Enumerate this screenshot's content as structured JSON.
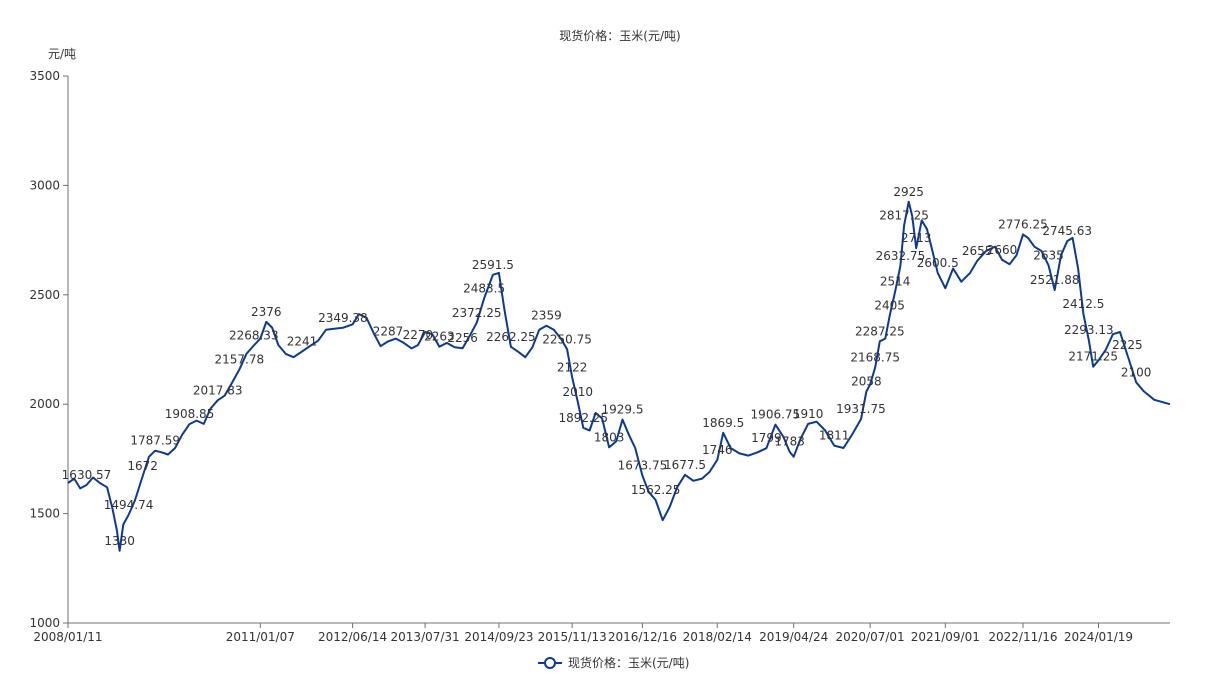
{
  "chart_data": {
    "type": "line",
    "title": "现货价格：玉米(元/吨)",
    "ylabel": "元/吨",
    "xlabel": "",
    "ylim": [
      1000,
      3500
    ],
    "yticks": [
      1000,
      1500,
      2000,
      2500,
      3000,
      3500
    ],
    "x_range": [
      "2008-01-11",
      "2025-02-28"
    ],
    "xticks": [
      "2008/01/11",
      "2011/01/07",
      "2012/06/14",
      "2013/07/31",
      "2014/09/23",
      "2015/11/13",
      "2016/12/16",
      "2018/02/14",
      "2019/04/24",
      "2020/07/01",
      "2021/09/01",
      "2022/11/16",
      "2024/01/19"
    ],
    "grid": false,
    "legend_position": "bottom",
    "series": [
      {
        "name": "现货价格：玉米(元/吨)",
        "color": "#0b3b91",
        "points": [
          [
            "2008-01-11",
            1640
          ],
          [
            "2008-02-15",
            1660
          ],
          [
            "2008-03-20",
            1615
          ],
          [
            "2008-04-25",
            1630.57
          ],
          [
            "2008-06-01",
            1665
          ],
          [
            "2008-07-10",
            1640
          ],
          [
            "2008-08-20",
            1620
          ],
          [
            "2008-09-20",
            1520
          ],
          [
            "2008-10-15",
            1420
          ],
          [
            "2008-10-30",
            1330
          ],
          [
            "2008-11-20",
            1450
          ],
          [
            "2008-12-20",
            1494.74
          ],
          [
            "2009-01-25",
            1560
          ],
          [
            "2009-03-10",
            1672
          ],
          [
            "2009-04-15",
            1760
          ],
          [
            "2009-05-20",
            1787.59
          ],
          [
            "2009-06-25",
            1780
          ],
          [
            "2009-08-01",
            1770
          ],
          [
            "2009-09-10",
            1800
          ],
          [
            "2009-10-20",
            1860
          ],
          [
            "2009-12-01",
            1908.85
          ],
          [
            "2010-01-10",
            1925
          ],
          [
            "2010-02-20",
            1910
          ],
          [
            "2010-03-30",
            1980
          ],
          [
            "2010-05-10",
            2017.83
          ],
          [
            "2010-06-20",
            2040
          ],
          [
            "2010-08-01",
            2100
          ],
          [
            "2010-09-10",
            2157.78
          ],
          [
            "2010-10-20",
            2230
          ],
          [
            "2010-12-01",
            2268.33
          ],
          [
            "2011-01-07",
            2300
          ],
          [
            "2011-02-10",
            2376
          ],
          [
            "2011-03-15",
            2350
          ],
          [
            "2011-04-20",
            2270
          ],
          [
            "2011-06-01",
            2230
          ],
          [
            "2011-07-15",
            2215
          ],
          [
            "2011-09-01",
            2241
          ],
          [
            "2011-10-15",
            2265
          ],
          [
            "2011-12-01",
            2290
          ],
          [
            "2012-01-15",
            2340
          ],
          [
            "2012-03-01",
            2345
          ],
          [
            "2012-04-20",
            2349.38
          ],
          [
            "2012-06-14",
            2365
          ],
          [
            "2012-07-20",
            2412
          ],
          [
            "2012-09-01",
            2395
          ],
          [
            "2012-10-15",
            2320
          ],
          [
            "2012-11-20",
            2265
          ],
          [
            "2013-01-01",
            2287
          ],
          [
            "2013-02-15",
            2300
          ],
          [
            "2013-04-01",
            2280
          ],
          [
            "2013-05-15",
            2255
          ],
          [
            "2013-06-20",
            2270
          ],
          [
            "2013-07-31",
            2330
          ],
          [
            "2013-09-10",
            2320
          ],
          [
            "2013-10-20",
            2263
          ],
          [
            "2013-12-01",
            2280
          ],
          [
            "2014-01-15",
            2260
          ],
          [
            "2014-03-01",
            2256
          ],
          [
            "2014-04-15",
            2320
          ],
          [
            "2014-05-20",
            2372.25
          ],
          [
            "2014-07-01",
            2483.5
          ],
          [
            "2014-08-20",
            2591.5
          ],
          [
            "2014-09-23",
            2600
          ],
          [
            "2014-10-25",
            2430
          ],
          [
            "2014-11-30",
            2262.25
          ],
          [
            "2015-01-10",
            2240
          ],
          [
            "2015-02-20",
            2215
          ],
          [
            "2015-04-01",
            2260
          ],
          [
            "2015-05-10",
            2340
          ],
          [
            "2015-06-20",
            2359
          ],
          [
            "2015-08-01",
            2340
          ],
          [
            "2015-09-10",
            2300
          ],
          [
            "2015-10-15",
            2250.75
          ],
          [
            "2015-11-13",
            2122
          ],
          [
            "2015-12-15",
            2010
          ],
          [
            "2016-01-15",
            1892.25
          ],
          [
            "2016-02-20",
            1880
          ],
          [
            "2016-03-25",
            1960
          ],
          [
            "2016-05-01",
            1935
          ],
          [
            "2016-06-10",
            1803
          ],
          [
            "2016-07-20",
            1830
          ],
          [
            "2016-08-25",
            1929.5
          ],
          [
            "2016-09-30",
            1860
          ],
          [
            "2016-11-05",
            1800
          ],
          [
            "2016-12-16",
            1673.75
          ],
          [
            "2017-01-20",
            1600
          ],
          [
            "2017-03-01",
            1562.25
          ],
          [
            "2017-04-10",
            1470
          ],
          [
            "2017-05-20",
            1530
          ],
          [
            "2017-07-01",
            1620
          ],
          [
            "2017-08-15",
            1677.5
          ],
          [
            "2017-10-01",
            1650
          ],
          [
            "2017-11-20",
            1660
          ],
          [
            "2018-01-01",
            1690
          ],
          [
            "2018-02-14",
            1746
          ],
          [
            "2018-03-20",
            1869.5
          ],
          [
            "2018-05-01",
            1800
          ],
          [
            "2018-06-20",
            1775
          ],
          [
            "2018-08-10",
            1765
          ],
          [
            "2018-10-01",
            1780
          ],
          [
            "2018-11-20",
            1799
          ],
          [
            "2019-01-10",
            1906.75
          ],
          [
            "2019-02-25",
            1850
          ],
          [
            "2019-04-01",
            1783
          ],
          [
            "2019-04-24",
            1760
          ],
          [
            "2019-06-01",
            1840
          ],
          [
            "2019-07-15",
            1910
          ],
          [
            "2019-09-01",
            1920
          ],
          [
            "2019-10-20",
            1880
          ],
          [
            "2019-12-10",
            1811
          ],
          [
            "2020-02-01",
            1800
          ],
          [
            "2020-03-20",
            1860
          ],
          [
            "2020-05-10",
            1931.75
          ],
          [
            "2020-06-10",
            2058
          ],
          [
            "2020-07-01",
            2090
          ],
          [
            "2020-07-30",
            2168.75
          ],
          [
            "2020-08-25",
            2287.25
          ],
          [
            "2020-09-25",
            2300
          ],
          [
            "2020-10-20",
            2405
          ],
          [
            "2020-11-20",
            2514
          ],
          [
            "2020-12-20",
            2632.75
          ],
          [
            "2021-01-10",
            2817.25
          ],
          [
            "2021-02-05",
            2925
          ],
          [
            "2021-02-25",
            2860
          ],
          [
            "2021-03-20",
            2713
          ],
          [
            "2021-04-20",
            2840
          ],
          [
            "2021-05-20",
            2800
          ],
          [
            "2021-06-20",
            2700
          ],
          [
            "2021-07-20",
            2600.5
          ],
          [
            "2021-09-01",
            2530
          ],
          [
            "2021-10-15",
            2620
          ],
          [
            "2021-12-01",
            2560
          ],
          [
            "2022-01-20",
            2600
          ],
          [
            "2022-03-01",
            2655
          ],
          [
            "2022-04-20",
            2700
          ],
          [
            "2022-06-10",
            2720
          ],
          [
            "2022-07-20",
            2660
          ],
          [
            "2022-09-01",
            2640
          ],
          [
            "2022-10-10",
            2680
          ],
          [
            "2022-11-16",
            2776.25
          ],
          [
            "2022-12-15",
            2760
          ],
          [
            "2023-01-20",
            2720
          ],
          [
            "2023-03-01",
            2700
          ],
          [
            "2023-04-10",
            2635
          ],
          [
            "2023-05-15",
            2521.88
          ],
          [
            "2023-06-20",
            2680
          ],
          [
            "2023-07-25",
            2745.63
          ],
          [
            "2023-08-25",
            2760
          ],
          [
            "2023-09-25",
            2620
          ],
          [
            "2023-10-25",
            2412.5
          ],
          [
            "2023-11-25",
            2293.13
          ],
          [
            "2023-12-20",
            2171.25
          ],
          [
            "2024-01-19",
            2200
          ],
          [
            "2024-03-01",
            2250
          ],
          [
            "2024-04-10",
            2320
          ],
          [
            "2024-05-20",
            2330
          ],
          [
            "2024-07-01",
            2225
          ],
          [
            "2024-08-20",
            2100
          ],
          [
            "2024-10-01",
            2060
          ],
          [
            "2024-12-01",
            2020
          ],
          [
            "2025-02-28",
            2000
          ]
        ]
      }
    ],
    "annotations": [
      {
        "x": "2008-04-25",
        "y": 1630.57,
        "label": "1630.57"
      },
      {
        "x": "2008-10-30",
        "y": 1330,
        "label": "1330"
      },
      {
        "x": "2008-12-20",
        "y": 1494.74,
        "label": "1494.74"
      },
      {
        "x": "2009-03-10",
        "y": 1672,
        "label": "1672"
      },
      {
        "x": "2009-05-20",
        "y": 1787.59,
        "label": "1787.59"
      },
      {
        "x": "2009-12-01",
        "y": 1908.85,
        "label": "1908.85"
      },
      {
        "x": "2010-05-10",
        "y": 2017.83,
        "label": "2017.83"
      },
      {
        "x": "2010-09-10",
        "y": 2157.78,
        "label": "2157.78"
      },
      {
        "x": "2010-12-01",
        "y": 2268.33,
        "label": "2268.33"
      },
      {
        "x": "2011-02-10",
        "y": 2376,
        "label": "2376"
      },
      {
        "x": "2011-09-01",
        "y": 2241,
        "label": "2241"
      },
      {
        "x": "2012-04-20",
        "y": 2349.38,
        "label": "2349.38"
      },
      {
        "x": "2013-01-01",
        "y": 2287,
        "label": "2287"
      },
      {
        "x": "2013-06-20",
        "y": 2270,
        "label": "2270"
      },
      {
        "x": "2013-10-20",
        "y": 2263,
        "label": "2263"
      },
      {
        "x": "2014-03-01",
        "y": 2256,
        "label": "2256"
      },
      {
        "x": "2014-05-20",
        "y": 2372.25,
        "label": "2372.25"
      },
      {
        "x": "2014-07-01",
        "y": 2483.5,
        "label": "2483.5"
      },
      {
        "x": "2014-08-20",
        "y": 2591.5,
        "label": "2591.5"
      },
      {
        "x": "2014-11-30",
        "y": 2262.25,
        "label": "2262.25"
      },
      {
        "x": "2015-06-20",
        "y": 2359,
        "label": "2359"
      },
      {
        "x": "2015-10-15",
        "y": 2250.75,
        "label": "2250.75"
      },
      {
        "x": "2015-11-13",
        "y": 2122,
        "label": "2122"
      },
      {
        "x": "2015-12-15",
        "y": 2010,
        "label": "2010"
      },
      {
        "x": "2016-01-15",
        "y": 1892.25,
        "label": "1892.25"
      },
      {
        "x": "2016-06-10",
        "y": 1803,
        "label": "1803"
      },
      {
        "x": "2016-08-25",
        "y": 1929.5,
        "label": "1929.5"
      },
      {
        "x": "2016-12-16",
        "y": 1673.75,
        "label": "1673.75"
      },
      {
        "x": "2017-03-01",
        "y": 1562.25,
        "label": "1562.25"
      },
      {
        "x": "2017-08-15",
        "y": 1677.5,
        "label": "1677.5"
      },
      {
        "x": "2018-02-14",
        "y": 1746,
        "label": "1746"
      },
      {
        "x": "2018-03-20",
        "y": 1869.5,
        "label": "1869.5"
      },
      {
        "x": "2018-11-20",
        "y": 1799,
        "label": "1799"
      },
      {
        "x": "2019-01-10",
        "y": 1906.75,
        "label": "1906.75"
      },
      {
        "x": "2019-04-01",
        "y": 1783,
        "label": "1783"
      },
      {
        "x": "2019-07-15",
        "y": 1910,
        "label": "1910"
      },
      {
        "x": "2019-12-10",
        "y": 1811,
        "label": "1811"
      },
      {
        "x": "2020-05-10",
        "y": 1931.75,
        "label": "1931.75"
      },
      {
        "x": "2020-06-10",
        "y": 2058,
        "label": "2058"
      },
      {
        "x": "2020-07-30",
        "y": 2168.75,
        "label": "2168.75"
      },
      {
        "x": "2020-08-25",
        "y": 2287.25,
        "label": "2287.25"
      },
      {
        "x": "2020-10-20",
        "y": 2405,
        "label": "2405"
      },
      {
        "x": "2020-11-20",
        "y": 2514,
        "label": "2514"
      },
      {
        "x": "2020-12-20",
        "y": 2632.75,
        "label": "2632.75"
      },
      {
        "x": "2021-01-10",
        "y": 2817.25,
        "label": "2817.25"
      },
      {
        "x": "2021-02-05",
        "y": 2925,
        "label": "2925"
      },
      {
        "x": "2021-03-20",
        "y": 2713,
        "label": "2713"
      },
      {
        "x": "2021-07-20",
        "y": 2600.5,
        "label": "2600.5"
      },
      {
        "x": "2022-03-01",
        "y": 2655,
        "label": "2655"
      },
      {
        "x": "2022-07-20",
        "y": 2660,
        "label": "2660"
      },
      {
        "x": "2022-11-16",
        "y": 2776.25,
        "label": "2776.25"
      },
      {
        "x": "2023-04-10",
        "y": 2635,
        "label": "2635"
      },
      {
        "x": "2023-05-15",
        "y": 2521.88,
        "label": "2521.88"
      },
      {
        "x": "2023-07-25",
        "y": 2745.63,
        "label": "2745.63"
      },
      {
        "x": "2023-10-25",
        "y": 2412.5,
        "label": "2412.5"
      },
      {
        "x": "2023-11-25",
        "y": 2293.13,
        "label": "2293.13"
      },
      {
        "x": "2023-12-20",
        "y": 2171.25,
        "label": "2171.25"
      },
      {
        "x": "2024-07-01",
        "y": 2225,
        "label": "2225"
      },
      {
        "x": "2024-08-20",
        "y": 2100,
        "label": "2100"
      }
    ]
  }
}
